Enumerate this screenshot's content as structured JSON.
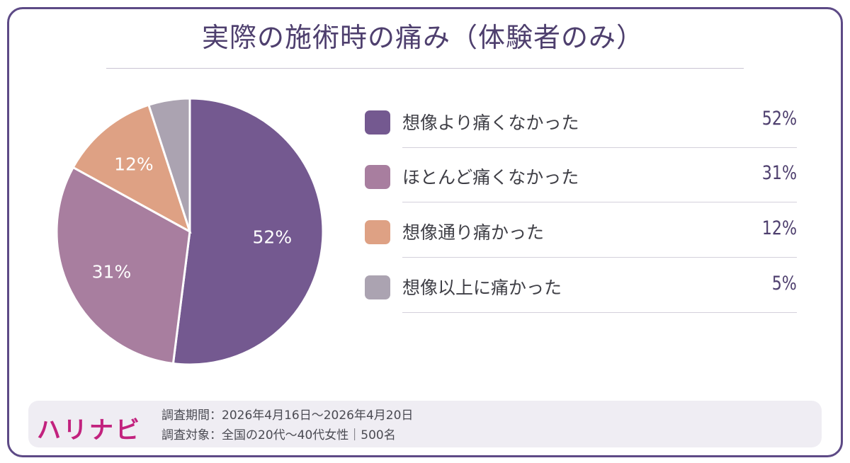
{
  "chart_data": {
    "type": "pie",
    "title": "実際の施術時の痛み（体験者のみ）",
    "slices": [
      {
        "label": "想像より痛くなかった",
        "value": 52,
        "display": "52%",
        "color": "#745990"
      },
      {
        "label": "ほとんど痛くなかった",
        "value": 31,
        "display": "31%",
        "color": "#a87e9f"
      },
      {
        "label": "想像通り痛かった",
        "value": 12,
        "display": "12%",
        "color": "#dea184"
      },
      {
        "label": "想像以上に痛かった",
        "value": 5,
        "display": "5%",
        "color": "#aba3b1"
      }
    ],
    "legend_position": "right"
  },
  "footer": {
    "logo": "ハリナビ",
    "survey_period": "調査期間：2026年4月16日〜2026年4月20日",
    "survey_target": "調査対象：全国の20代〜40代女性｜500名"
  },
  "colors": {
    "frame": "#5d4a86",
    "title": "#4e3f6e",
    "logo": "#c2227e",
    "footer_bg": "#efedf3"
  }
}
